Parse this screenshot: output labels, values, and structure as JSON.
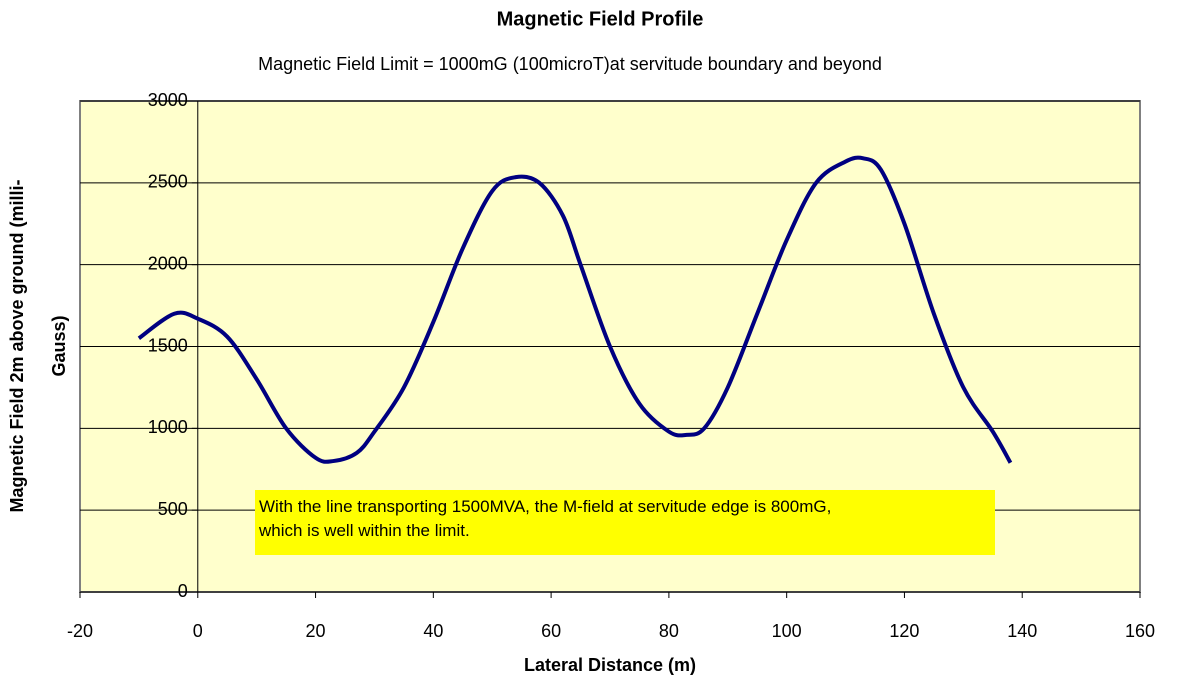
{
  "chart_data": {
    "type": "line",
    "title": "Magnetic Field Profile",
    "subtitle": "Magnetic Field Limit = 1000mG (100microT)at servitude boundary and beyond",
    "xlabel": "Lateral Distance (m)",
    "ylabel": [
      "Magnetic Field 2m above ground (milli-",
      "Gauss)"
    ],
    "annotation": [
      "With the line transporting 1500MVA, the M-field at servitude edge is 800mG,",
      "which is well within the limit."
    ],
    "x": [
      -10,
      -4,
      0,
      5,
      10,
      15,
      20,
      23,
      27,
      30,
      35,
      40,
      45,
      50,
      54,
      58,
      62,
      65,
      70,
      75,
      80,
      83,
      86,
      90,
      95,
      100,
      105,
      110,
      113,
      116,
      120,
      125,
      130,
      135,
      138
    ],
    "series": [
      {
        "name": "Magnetic Field",
        "color": "#000080",
        "values": [
          1550,
          1700,
          1670,
          1560,
          1300,
          1000,
          820,
          800,
          850,
          980,
          1250,
          1650,
          2100,
          2450,
          2535,
          2500,
          2300,
          2000,
          1500,
          1150,
          980,
          960,
          1000,
          1250,
          1700,
          2150,
          2500,
          2630,
          2650,
          2580,
          2250,
          1700,
          1250,
          980,
          790
        ]
      }
    ],
    "xlim": [
      -20,
      160
    ],
    "xticks": [
      -20,
      0,
      20,
      40,
      60,
      80,
      100,
      120,
      140,
      160
    ],
    "ylim": [
      0,
      3000
    ],
    "yticks": [
      0,
      500,
      1000,
      1500,
      2000,
      2500,
      3000
    ],
    "grid": true,
    "plot_background": "#ffffcc"
  }
}
